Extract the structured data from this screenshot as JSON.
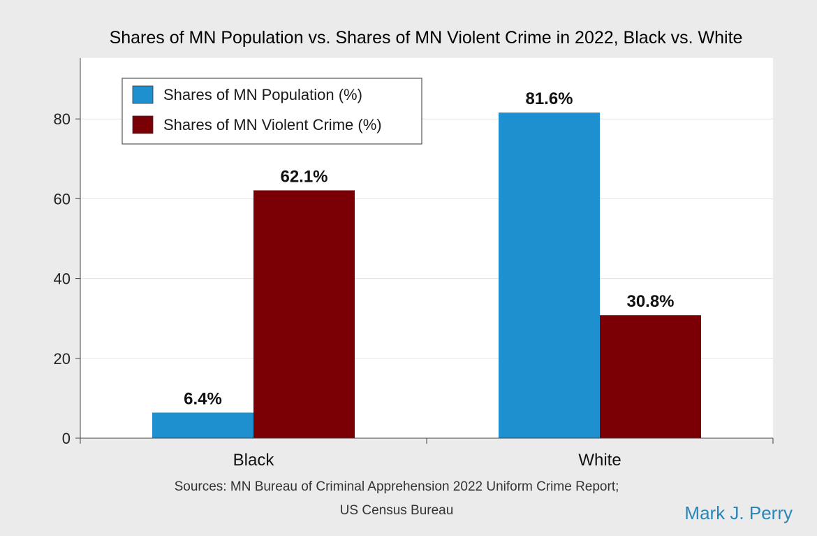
{
  "chart_data": {
    "type": "bar",
    "title": "Shares of MN Population vs. Shares of MN Violent Crime in 2022, Black vs. White",
    "categories": [
      "Black",
      "White"
    ],
    "series": [
      {
        "name": "Shares of MN Population (%)",
        "values": [
          6.4,
          81.6
        ],
        "labels": [
          "6.4%",
          "81.6%"
        ],
        "color": "#1e90cf"
      },
      {
        "name": "Shares of MN Violent Crime (%)",
        "values": [
          62.1,
          30.8
        ],
        "labels": [
          "62.1%",
          "30.8%"
        ],
        "color": "#7a0006"
      }
    ],
    "xlabel": "",
    "ylabel": "",
    "ylim": [
      0,
      95
    ],
    "yticks": [
      0,
      20,
      40,
      60,
      80
    ],
    "grid": true,
    "legend_position": "top-left"
  },
  "source": {
    "line1": "Sources: MN Bureau of Criminal Apprehension 2022 Uniform Crime Report;",
    "line2": "US Census Bureau"
  },
  "author": "Mark J. Perry"
}
